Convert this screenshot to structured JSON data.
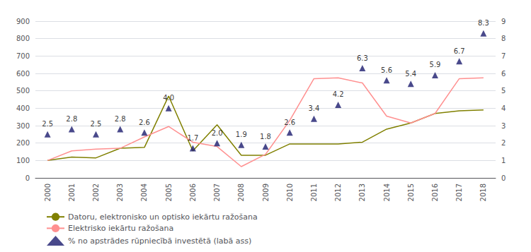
{
  "chart_data": {
    "type": "line",
    "categories": [
      "2000",
      "2001",
      "2002",
      "2003",
      "2004",
      "2005",
      "2006",
      "2007",
      "2008",
      "2009",
      "2010",
      "2011",
      "2012",
      "2013",
      "2014",
      "2015",
      "2016",
      "2017",
      "2018"
    ],
    "series": [
      {
        "name": "Datoru, elektronisko un optisko iekārtu ražošana",
        "color": "#808000",
        "values": [
          100,
          120,
          115,
          170,
          175,
          470,
          155,
          305,
          130,
          130,
          195,
          195,
          195,
          205,
          280,
          315,
          370,
          385,
          390
        ]
      },
      {
        "name": "Elektrisko iekārtu ražošana",
        "color": "#FF9090",
        "values": [
          100,
          155,
          165,
          170,
          235,
          295,
          205,
          180,
          65,
          135,
          330,
          570,
          575,
          545,
          355,
          315,
          370,
          570,
          575
        ]
      },
      {
        "name": "% no apstrādes rūpniecībā investētā (labā ass)",
        "color": "#1C1C6E",
        "type": "scatter",
        "marker": "triangle",
        "axis": "y2",
        "data_labels": true,
        "values": [
          2.5,
          2.8,
          2.5,
          2.8,
          2.6,
          4.0,
          1.7,
          2.0,
          1.9,
          1.8,
          2.6,
          3.4,
          4.2,
          6.3,
          5.6,
          5.4,
          5.9,
          6.7,
          8.3
        ],
        "value_labels": [
          "2.5",
          "2.8",
          "2.5",
          "2.8",
          "2.6",
          "4.0",
          "1.7",
          "2.0",
          "1.9",
          "1.8",
          "2.6",
          "3.4",
          "4.2",
          "6.3",
          "5.6",
          "5.4",
          "5.9",
          "6.7",
          "8.3"
        ]
      }
    ],
    "ylim": [
      0,
      900
    ],
    "yticks": [
      0,
      100,
      200,
      300,
      400,
      500,
      600,
      700,
      800,
      900
    ],
    "y2lim": [
      0,
      9
    ],
    "y2ticks": [
      0,
      1,
      2,
      3,
      4,
      5,
      6,
      7,
      8,
      9
    ],
    "grid": true,
    "legend": "bottom"
  }
}
